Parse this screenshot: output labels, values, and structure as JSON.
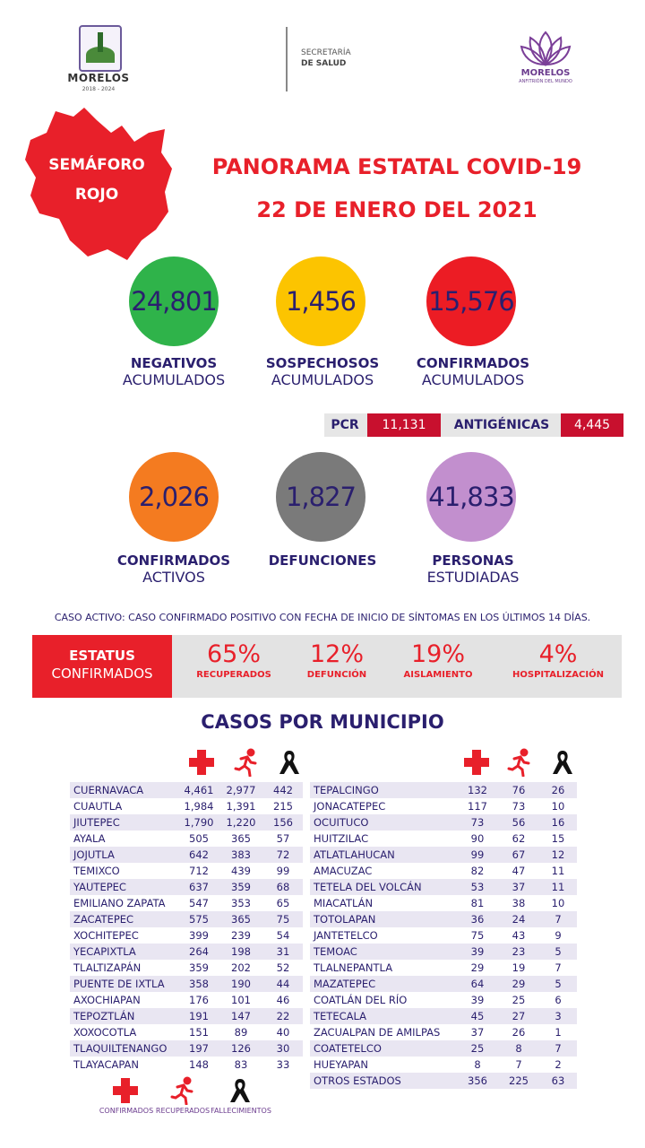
{
  "header": {
    "state_name": "MORELOS",
    "state_years": "2018 - 2024",
    "secretaria_line1": "SECRETARÍA",
    "secretaria_line2": "DE SALUD",
    "brand_name": "MORELOS",
    "brand_tagline": "ANFITRIÓN DEL MUNDO"
  },
  "semaforo": {
    "line1": "SEMÁFORO",
    "line2": "ROJO",
    "color": "#e8202a"
  },
  "title": {
    "line1": "PANORAMA ESTATAL COVID-19",
    "line2": "22 DE ENERO DEL 2021"
  },
  "stats": [
    {
      "value": "24,801",
      "label1": "NEGATIVOS",
      "label2": "ACUMULADOS",
      "color": "#2fb34a"
    },
    {
      "value": "1,456",
      "label1": "SOSPECHOSOS",
      "label2": "ACUMULADOS",
      "color": "#fcc400"
    },
    {
      "value": "15,576",
      "label1": "CONFIRMADOS",
      "label2": "ACUMULADOS",
      "color": "#ec1c24"
    },
    {
      "value": "2,026",
      "label1": "CONFIRMADOS",
      "label2": "ACTIVOS",
      "color": "#f47b20"
    },
    {
      "value": "1,827",
      "label1": "DEFUNCIONES",
      "label2": "",
      "color": "#7a7a7a"
    },
    {
      "value": "41,833",
      "label1": "PERSONAS",
      "label2": "ESTUDIADAS",
      "color": "#c28fce"
    }
  ],
  "tests": {
    "pcr_label": "PCR",
    "pcr_value": "11,131",
    "ant_label": "ANTIGÉNICAS",
    "ant_value": "4,445"
  },
  "note": "CASO ACTIVO: CASO CONFIRMADO POSITIVO CON FECHA DE INICIO DE SÍNTOMAS EN LOS ÚLTIMOS 14 DÍAS.",
  "estatus": {
    "label1": "ESTATUS",
    "label2": "CONFIRMADOS",
    "items": [
      {
        "pct": "65%",
        "caption": "RECUPERADOS"
      },
      {
        "pct": "12%",
        "caption": "DEFUNCIÓN"
      },
      {
        "pct": "19%",
        "caption": "AISLAMIENTO"
      },
      {
        "pct": "4%",
        "caption": "HOSPITALIZACIÓN"
      }
    ]
  },
  "casos_title": "CASOS POR MUNICIPIO",
  "left_table": [
    [
      "CUERNAVACA",
      "4,461",
      "2,977",
      "442"
    ],
    [
      "CUAUTLA",
      "1,984",
      "1,391",
      "215"
    ],
    [
      "JIUTEPEC",
      "1,790",
      "1,220",
      "156"
    ],
    [
      "AYALA",
      "505",
      "365",
      "57"
    ],
    [
      "JOJUTLA",
      "642",
      "383",
      "72"
    ],
    [
      "TEMIXCO",
      "712",
      "439",
      "99"
    ],
    [
      "YAUTEPEC",
      "637",
      "359",
      "68"
    ],
    [
      "EMILIANO ZAPATA",
      "547",
      "353",
      "65"
    ],
    [
      "ZACATEPEC",
      "575",
      "365",
      "75"
    ],
    [
      "XOCHITEPEC",
      "399",
      "239",
      "54"
    ],
    [
      "YECAPIXTLA",
      "264",
      "198",
      "31"
    ],
    [
      "TLALTIZAPÁN",
      "359",
      "202",
      "52"
    ],
    [
      "PUENTE DE IXTLA",
      "358",
      "190",
      "44"
    ],
    [
      "AXOCHIAPAN",
      "176",
      "101",
      "46"
    ],
    [
      "TEPOZTLÁN",
      "191",
      "147",
      "22"
    ],
    [
      "XOXOCOTLA",
      "151",
      "89",
      "40"
    ],
    [
      "TLAQUILTENANGO",
      "197",
      "126",
      "30"
    ],
    [
      "TLAYACAPAN",
      "148",
      "83",
      "33"
    ]
  ],
  "right_table": [
    [
      "TEPALCINGO",
      "132",
      "76",
      "26"
    ],
    [
      "JONACATEPEC",
      "117",
      "73",
      "10"
    ],
    [
      "OCUITUCO",
      "73",
      "56",
      "16"
    ],
    [
      "HUITZILAC",
      "90",
      "62",
      "15"
    ],
    [
      "ATLATLAHUCAN",
      "99",
      "67",
      "12"
    ],
    [
      "AMACUZAC",
      "82",
      "47",
      "11"
    ],
    [
      "TETELA DEL VOLCÁN",
      "53",
      "37",
      "11"
    ],
    [
      "MIACATLÁN",
      "81",
      "38",
      "10"
    ],
    [
      "TOTOLAPAN",
      "36",
      "24",
      "7"
    ],
    [
      "JANTETELCO",
      "75",
      "43",
      "9"
    ],
    [
      "TEMOAC",
      "39",
      "23",
      "5"
    ],
    [
      "TLALNEPANTLA",
      "29",
      "19",
      "7"
    ],
    [
      "MAZATEPEC",
      "64",
      "29",
      "5"
    ],
    [
      "COATLÁN DEL RÍO",
      "39",
      "25",
      "6"
    ],
    [
      "TETECALA",
      "45",
      "27",
      "3"
    ],
    [
      "ZACUALPAN DE AMILPAS",
      "37",
      "26",
      "1"
    ],
    [
      "COATETELCO",
      "25",
      "8",
      "7"
    ],
    [
      "HUEYAPAN",
      "8",
      "7",
      "2"
    ],
    [
      "OTROS ESTADOS",
      "356",
      "225",
      "63"
    ]
  ],
  "legend": {
    "confirmed": "CONFIRMADOS",
    "recovered": "RECUPERADOS",
    "deaths": "FALLECIMIENTOS"
  },
  "icons": {
    "confirmed": "red-cross-icon",
    "recovered": "running-person-icon",
    "deaths": "black-ribbon-icon"
  }
}
